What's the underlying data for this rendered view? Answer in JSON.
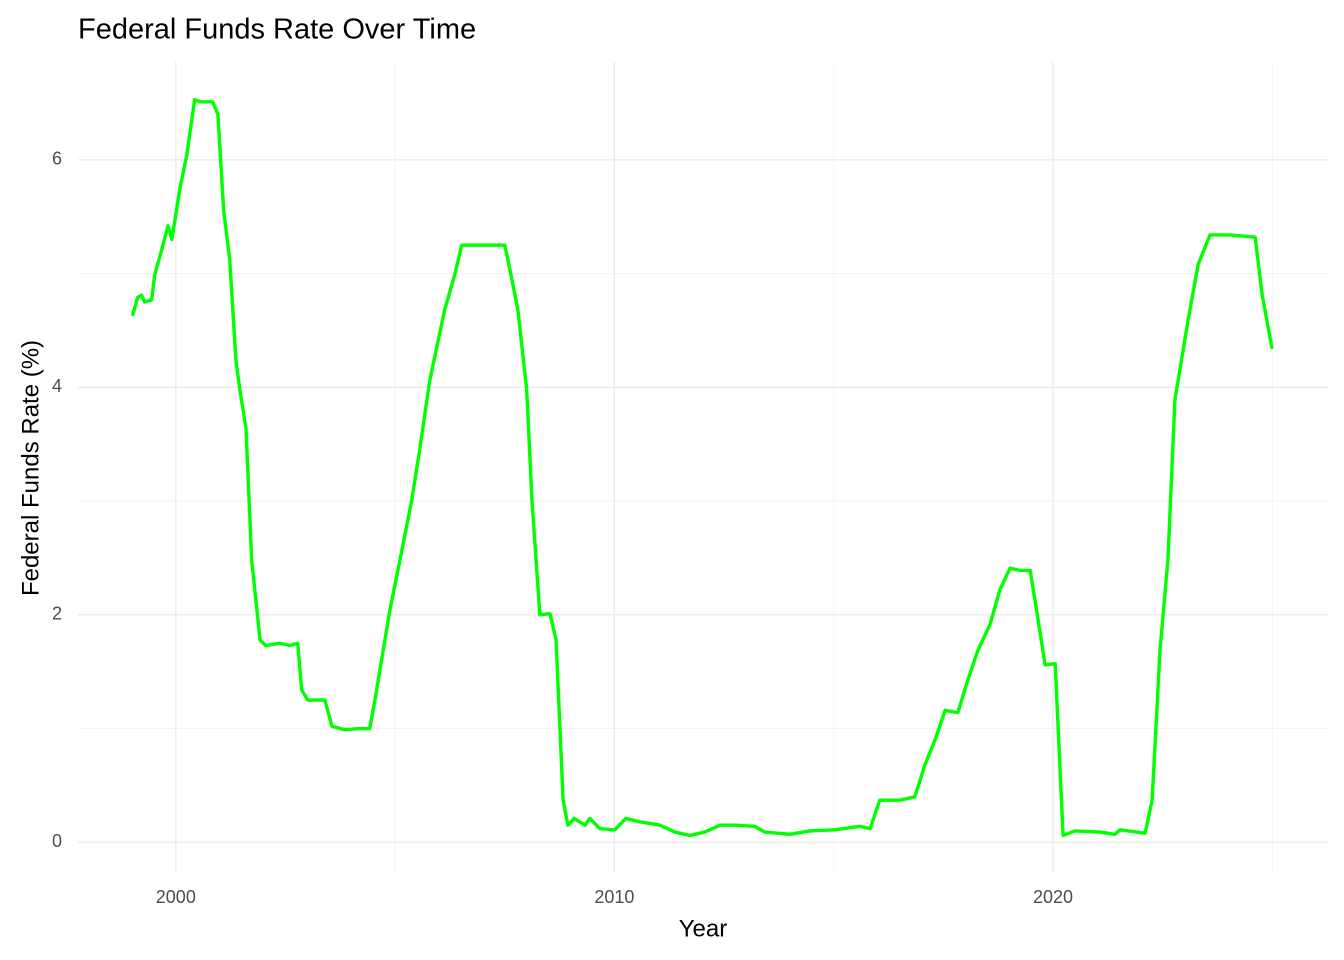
{
  "chart_data": {
    "type": "line",
    "title": "Federal Funds Rate Over Time",
    "x_label": "Year",
    "y_label": "Federal Funds Rate (%)",
    "xlim": [
      1997.77,
      2026.27
    ],
    "ylim": [
      -0.27,
      6.86
    ],
    "xticks": [
      2000,
      2010,
      2020
    ],
    "yticks": [
      0,
      2,
      4,
      6
    ],
    "x_minor_ticks": [
      2005,
      2015,
      2025
    ],
    "y_minor_ticks": [
      1,
      3,
      5
    ],
    "grid": true,
    "series": [
      {
        "color": "#00ff00",
        "x": [
          1999.02,
          1999.13,
          1999.22,
          1999.29,
          1999.45,
          1999.52,
          1999.68,
          1999.82,
          1999.91,
          2000.09,
          2000.25,
          2000.43,
          2000.55,
          2000.84,
          2000.96,
          2001.09,
          2001.23,
          2001.37,
          2001.46,
          2001.6,
          2001.73,
          2001.92,
          2002.05,
          2002.37,
          2002.6,
          2002.78,
          2002.87,
          2003.01,
          2003.4,
          2003.56,
          2003.85,
          2004.2,
          2004.42,
          2004.54,
          2004.88,
          2005.11,
          2005.38,
          2005.56,
          2005.79,
          2006.13,
          2006.36,
          2006.52,
          2006.93,
          2007.5,
          2007.62,
          2007.8,
          2008.0,
          2008.12,
          2008.3,
          2008.53,
          2008.67,
          2008.83,
          2008.94,
          2009.08,
          2009.33,
          2009.44,
          2009.67,
          2010.01,
          2010.26,
          2010.58,
          2011.04,
          2011.38,
          2011.72,
          2012.06,
          2012.41,
          2012.75,
          2013.2,
          2013.43,
          2014.0,
          2014.46,
          2015.03,
          2015.6,
          2015.83,
          2016.05,
          2016.51,
          2016.85,
          2017.08,
          2017.31,
          2017.54,
          2017.83,
          2018.06,
          2018.29,
          2018.56,
          2018.79,
          2019.02,
          2019.25,
          2019.48,
          2019.61,
          2019.82,
          2020.05,
          2020.23,
          2020.5,
          2021.07,
          2021.41,
          2021.53,
          2022.1,
          2022.26,
          2022.44,
          2022.62,
          2022.78,
          2023.08,
          2023.31,
          2023.58,
          2024.04,
          2024.61,
          2024.77,
          2024.99
        ],
        "values": [
          4.64,
          4.79,
          4.81,
          4.75,
          4.77,
          4.99,
          5.21,
          5.42,
          5.3,
          5.74,
          6.04,
          6.53,
          6.51,
          6.51,
          6.4,
          5.56,
          5.12,
          4.24,
          3.98,
          3.64,
          2.48,
          1.78,
          1.73,
          1.75,
          1.73,
          1.75,
          1.34,
          1.25,
          1.25,
          1.02,
          0.99,
          1.0,
          1.0,
          1.25,
          2.04,
          2.48,
          3.01,
          3.45,
          4.06,
          4.68,
          4.99,
          5.25,
          5.25,
          5.25,
          5.03,
          4.68,
          3.98,
          3.01,
          2.0,
          2.01,
          1.78,
          0.37,
          0.15,
          0.21,
          0.15,
          0.21,
          0.12,
          0.11,
          0.21,
          0.18,
          0.15,
          0.09,
          0.06,
          0.09,
          0.15,
          0.15,
          0.14,
          0.09,
          0.07,
          0.1,
          0.11,
          0.14,
          0.12,
          0.37,
          0.37,
          0.4,
          0.68,
          0.9,
          1.16,
          1.14,
          1.43,
          1.69,
          1.91,
          2.22,
          2.41,
          2.39,
          2.39,
          2.08,
          1.56,
          1.57,
          0.06,
          0.1,
          0.09,
          0.07,
          0.11,
          0.08,
          0.37,
          1.69,
          2.48,
          3.89,
          4.59,
          5.08,
          5.34,
          5.34,
          5.32,
          4.81,
          4.35
        ]
      }
    ]
  }
}
